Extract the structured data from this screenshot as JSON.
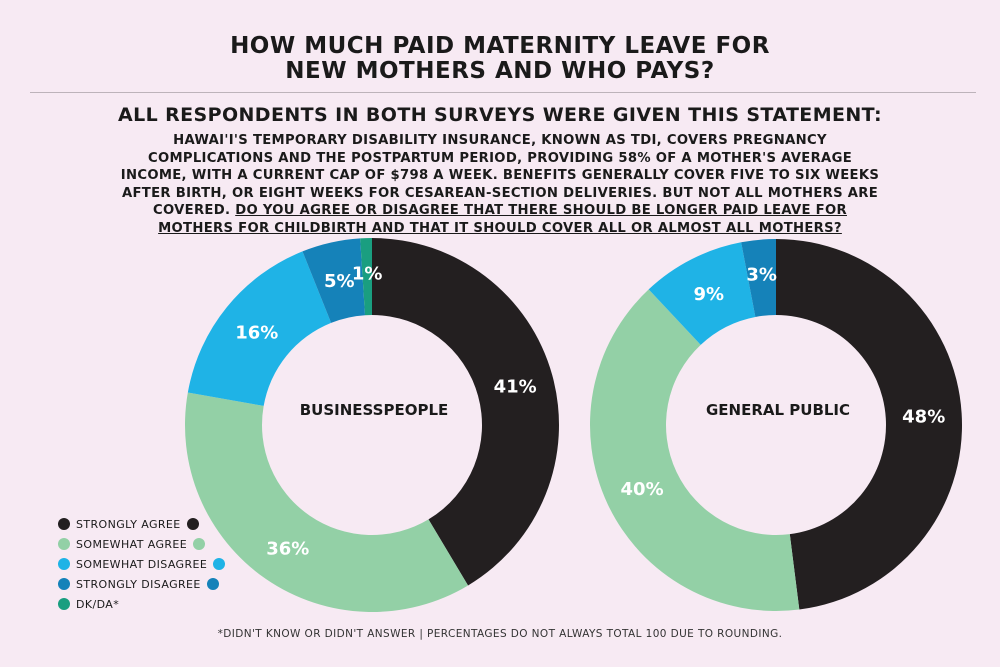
{
  "title": {
    "line1": "HOW MUCH PAID MATERNITY LEAVE FOR",
    "line2": "NEW MOTHERS AND WHO PAYS?"
  },
  "subtitle": "ALL RESPONDENTS IN BOTH SURVEYS WERE GIVEN THIS STATEMENT:",
  "statement": {
    "text": "HAWAI'I'S TEMPORARY DISABILITY INSURANCE, KNOWN AS TDI, COVERS PREGNANCY COMPLICATIONS AND THE POSTPARTUM PERIOD, PROVIDING 58% OF A MOTHER'S AVERAGE INCOME, WITH A CURRENT CAP OF $798 A WEEK. BENEFITS GENERALLY COVER FIVE TO SIX WEEKS AFTER BIRTH, OR EIGHT WEEKS FOR CESAREAN-SECTION DELIVERIES. BUT NOT ALL MOTHERS ARE COVERED.",
    "question": "DO YOU AGREE OR DISAGREE THAT THERE SHOULD BE LONGER PAID LEAVE FOR MOTHERS FOR CHILDBIRTH AND THAT IT SHOULD COVER ALL OR ALMOST ALL MOTHERS?"
  },
  "legend": [
    {
      "label": "STRONGLY AGREE",
      "color": "#231f20"
    },
    {
      "label": "SOMEWHAT AGREE",
      "color": "#93d0a6"
    },
    {
      "label": "SOMEWHAT DISAGREE",
      "color": "#1fb3e6"
    },
    {
      "label": "STRONGLY DISAGREE",
      "color": "#1582b9"
    },
    {
      "label": "DK/DA*",
      "color": "#1a9e80"
    }
  ],
  "chart_data": [
    {
      "type": "pie",
      "donut": true,
      "title": "BUSINESSPEOPLE",
      "categories": [
        "STRONGLY AGREE",
        "SOMEWHAT AGREE",
        "SOMEWHAT DISAGREE",
        "STRONGLY DISAGREE",
        "DK/DA*"
      ],
      "values": [
        41,
        36,
        16,
        5,
        1
      ],
      "labels": [
        "41%",
        "36%",
        "16%",
        "5%",
        "1%"
      ],
      "colors": [
        "#231f20",
        "#93d0a6",
        "#1fb3e6",
        "#1582b9",
        "#1a9e80"
      ]
    },
    {
      "type": "pie",
      "donut": true,
      "title": "GENERAL PUBLIC",
      "categories": [
        "STRONGLY AGREE",
        "SOMEWHAT AGREE",
        "SOMEWHAT DISAGREE",
        "STRONGLY DISAGREE"
      ],
      "values": [
        48,
        40,
        9,
        3
      ],
      "labels": [
        "48%",
        "40%",
        "9%",
        "3%"
      ],
      "colors": [
        "#231f20",
        "#93d0a6",
        "#1fb3e6",
        "#1582b9"
      ]
    }
  ],
  "footnote": "*DIDN'T KNOW OR DIDN'T ANSWER | PERCENTAGES DO NOT ALWAYS TOTAL 100 DUE TO ROUNDING."
}
